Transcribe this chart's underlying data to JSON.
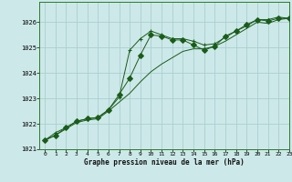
{
  "title": "Graphe pression niveau de la mer (hPa)",
  "background_color": "#cce8e8",
  "grid_color": "#aacfcf",
  "line_color": "#1a5c1a",
  "xlim": [
    -0.5,
    23
  ],
  "ylim": [
    1021.0,
    1026.8
  ],
  "yticks": [
    1021,
    1022,
    1023,
    1024,
    1025,
    1026
  ],
  "xticks": [
    0,
    1,
    2,
    3,
    4,
    5,
    6,
    7,
    8,
    9,
    10,
    11,
    12,
    13,
    14,
    15,
    16,
    17,
    18,
    19,
    20,
    21,
    22,
    23
  ],
  "series": [
    {
      "x": [
        0,
        1,
        2,
        3,
        4,
        5,
        6,
        7,
        8,
        9,
        10,
        11,
        12,
        13,
        14,
        15,
        16,
        17,
        18,
        19,
        20,
        21,
        22,
        23
      ],
      "y": [
        1021.35,
        1021.65,
        1021.85,
        1022.1,
        1022.2,
        1022.25,
        1022.55,
        1023.05,
        1024.9,
        1025.35,
        1025.65,
        1025.5,
        1025.35,
        1025.35,
        1025.25,
        1025.1,
        1025.15,
        1025.4,
        1025.65,
        1025.85,
        1026.1,
        1026.1,
        1026.2,
        1026.15
      ],
      "marker": "+"
    },
    {
      "x": [
        0,
        1,
        2,
        3,
        4,
        5,
        6,
        7,
        8,
        9,
        10,
        11,
        12,
        13,
        14,
        15,
        16,
        17,
        18,
        19,
        20,
        21,
        22,
        23
      ],
      "y": [
        1021.35,
        1021.55,
        1021.85,
        1022.1,
        1022.2,
        1022.25,
        1022.55,
        1023.15,
        1023.8,
        1024.7,
        1025.5,
        1025.45,
        1025.3,
        1025.3,
        1025.1,
        1024.9,
        1025.05,
        1025.45,
        1025.65,
        1025.9,
        1026.1,
        1026.05,
        1026.15,
        1026.15
      ],
      "marker": "D"
    },
    {
      "x": [
        0,
        1,
        2,
        3,
        4,
        5,
        6,
        7,
        8,
        9,
        10,
        11,
        12,
        13,
        14,
        15,
        16,
        17,
        18,
        19,
        20,
        21,
        22,
        23
      ],
      "y": [
        1021.35,
        1021.55,
        1021.8,
        1022.05,
        1022.15,
        1022.2,
        1022.5,
        1022.85,
        1023.2,
        1023.65,
        1024.05,
        1024.35,
        1024.6,
        1024.85,
        1024.95,
        1024.95,
        1025.05,
        1025.25,
        1025.5,
        1025.75,
        1026.0,
        1025.95,
        1026.1,
        1026.15
      ],
      "marker": null
    }
  ]
}
